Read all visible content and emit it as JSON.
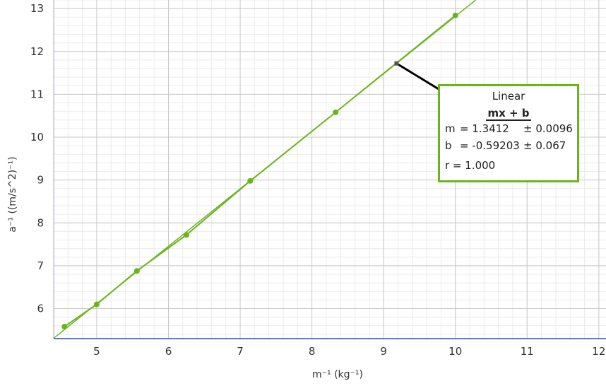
{
  "chart_data": {
    "type": "scatter",
    "xlabel": "m⁻¹ (kg⁻¹)",
    "ylabel": "a⁻¹ ((m/s^2)⁻¹)",
    "xlim": [
      4.4,
      12.1
    ],
    "ylim": [
      5.3,
      13.2
    ],
    "x_ticks": [
      "5",
      "6",
      "7",
      "8",
      "9",
      "10",
      "11",
      "12"
    ],
    "y_ticks": [
      "6",
      "7",
      "8",
      "9",
      "10",
      "11",
      "12",
      "13"
    ],
    "grid": true,
    "series": [
      {
        "x": [
          4.55,
          5.0,
          5.56,
          6.25,
          7.14,
          8.33,
          10.0
        ],
        "y": [
          5.58,
          6.1,
          6.88,
          7.72,
          8.98,
          10.58,
          12.84
        ]
      }
    ],
    "fit": {
      "slope": 1.3412,
      "intercept": -0.59203,
      "name": "Linear",
      "formula": "mx + b",
      "m_label": "m",
      "m_value": "= 1.3412",
      "m_err": "± 0.0096",
      "b_label": "b",
      "b_value": "= -0.59203",
      "b_err": "± 0.067",
      "r": "r = 1.000"
    },
    "colors": {
      "series": "#6cb41e",
      "grid_major": "#c8c8c8",
      "grid_minor": "#ebebeb",
      "axis": "#3a4fa0",
      "leader": "#000000"
    }
  }
}
